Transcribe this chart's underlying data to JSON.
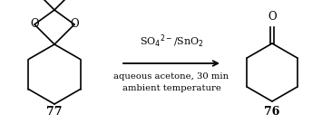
{
  "background_color": "#ffffff",
  "reagent_text": "SO$_4$$^{2-}$/SnO$_2$",
  "condition1": "aqueous acetone, 30 min",
  "condition2": "ambient temperature",
  "compound_left": "77",
  "compound_right": "76",
  "figsize": [
    3.55,
    1.37
  ],
  "dpi": 100,
  "lw": 1.2
}
